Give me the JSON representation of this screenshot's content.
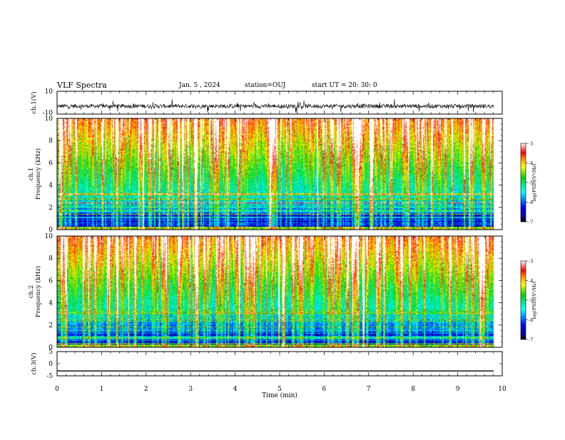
{
  "header": {
    "title": "VLF Spectra",
    "date": "Jan. 5 , 2024",
    "station": "station=OUJ",
    "start": "start UT = 20: 30: 0"
  },
  "colors": {
    "palette": [
      "#000000",
      "#0a0a9a",
      "#0000ff",
      "#0066ff",
      "#00ccff",
      "#00e6a0",
      "#00d000",
      "#7ee000",
      "#ffff00",
      "#ffd000",
      "#ff8000",
      "#ff0000",
      "#ff8080",
      "#ffffff"
    ],
    "axis": "#000000"
  },
  "chart_data": [
    {
      "type": "line",
      "name": "ch.1(V)",
      "ylabel": "ch.1(V)",
      "ylim": [
        -10,
        10
      ],
      "yticks": [
        10,
        -10
      ],
      "xlim": [
        0,
        10
      ],
      "baseline": -3,
      "noise_amplitude": 1.8
    },
    {
      "type": "heatmap",
      "ylabel_top": "ch.1",
      "ylabel": "Frequency (kHz)",
      "ylim": [
        0,
        10
      ],
      "yticks": [
        0,
        2,
        4,
        6,
        8,
        10
      ],
      "xlim": [
        0,
        9.85
      ],
      "colorbar": {
        "label": "log(PSD)(V²/Hz)",
        "ticks": [
          -3,
          -4,
          -5,
          -6,
          -7
        ],
        "range": [
          -7,
          -3
        ]
      }
    },
    {
      "type": "heatmap",
      "ylabel_top": "ch.2",
      "ylabel": "Frequency (kHz)",
      "ylim": [
        0,
        10
      ],
      "yticks": [
        0,
        2,
        4,
        6,
        8,
        10
      ],
      "xlim": [
        0,
        9.85
      ],
      "colorbar": {
        "label": "log(PSD)(V²/Hz)",
        "ticks": [
          -3,
          -4,
          -5,
          -6,
          -7
        ],
        "range": [
          -7,
          -3
        ]
      }
    },
    {
      "type": "line",
      "name": "ch.3(V)",
      "ylabel": "ch.3(V)",
      "ylim": [
        -5,
        5
      ],
      "yticks": [
        5,
        0,
        -5
      ],
      "xlim": [
        0,
        10
      ],
      "value": -3
    }
  ],
  "xaxis": {
    "label": "Time (min)",
    "ticks": [
      "0",
      "1",
      "2",
      "3",
      "4",
      "5",
      "6",
      "7",
      "8",
      "9",
      "10"
    ]
  }
}
